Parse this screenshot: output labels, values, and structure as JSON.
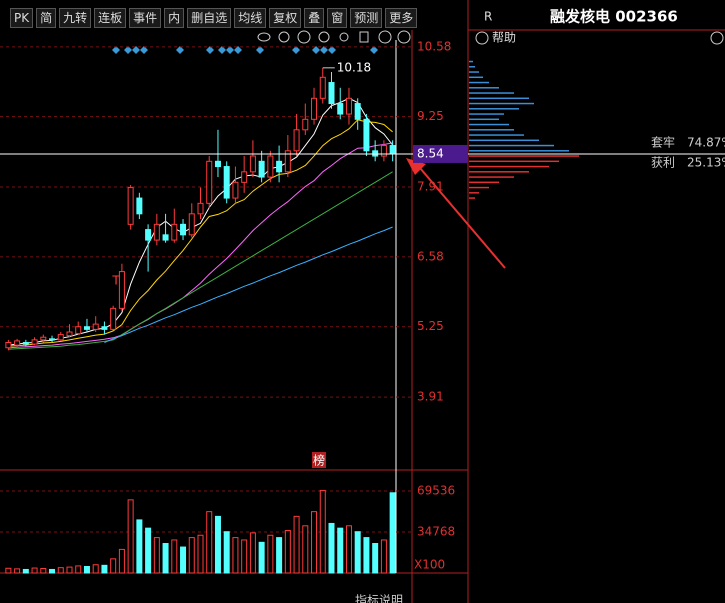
{
  "toolbar": {
    "buttons": [
      "PK",
      "简",
      "九转",
      "连板",
      "事件",
      "内",
      "删自选",
      "均线",
      "复权",
      "叠",
      "窗",
      "预测",
      "更多"
    ]
  },
  "panel": {
    "code_flag": "R",
    "title": "融发核电 002366",
    "help": "帮助",
    "trapped_label": "套牢",
    "trapped_value": "74.87%",
    "profit_label": "获利",
    "profit_value": "25.13%"
  },
  "footer": "指标说明",
  "chart_data": [
    {
      "type": "candlestick",
      "open": [
        4.85,
        4.9,
        4.95,
        4.92,
        5.0,
        5.02,
        5.0,
        5.08,
        5.12,
        5.25,
        5.2,
        5.25,
        5.2,
        5.6,
        7.2,
        7.7,
        7.1,
        6.9,
        7.0,
        6.9,
        7.2,
        7.0,
        7.4,
        7.6,
        8.4,
        8.3,
        7.7,
        8.0,
        8.2,
        8.4,
        8.1,
        8.4,
        8.2,
        8.6,
        9.0,
        9.2,
        9.6,
        9.9,
        9.5,
        9.3,
        9.5,
        9.2,
        8.6,
        8.5,
        8.7
      ],
      "close": [
        4.95,
        4.98,
        4.92,
        5.0,
        5.05,
        5.0,
        5.1,
        5.15,
        5.25,
        5.2,
        5.3,
        5.2,
        5.6,
        6.3,
        7.9,
        7.4,
        6.9,
        7.2,
        6.9,
        7.2,
        7.0,
        7.4,
        7.6,
        8.4,
        8.3,
        7.7,
        8.0,
        8.2,
        8.5,
        8.1,
        8.5,
        8.2,
        8.6,
        9.0,
        9.2,
        9.6,
        10.0,
        9.5,
        9.3,
        9.6,
        9.2,
        8.6,
        8.5,
        8.7,
        8.54
      ],
      "high": [
        5.0,
        5.02,
        5.0,
        5.05,
        5.1,
        5.08,
        5.15,
        5.3,
        5.35,
        5.4,
        5.45,
        5.35,
        5.65,
        6.45,
        7.95,
        7.8,
        7.2,
        7.4,
        7.4,
        7.5,
        7.3,
        7.6,
        7.9,
        8.5,
        9.0,
        8.4,
        8.3,
        8.5,
        8.8,
        8.6,
        8.6,
        8.7,
        8.9,
        9.3,
        9.5,
        9.8,
        10.18,
        10.1,
        9.8,
        9.8,
        9.6,
        9.3,
        8.8,
        8.8,
        8.8
      ],
      "low": [
        4.8,
        4.85,
        4.88,
        4.9,
        4.95,
        4.96,
        4.98,
        5.05,
        5.1,
        5.15,
        5.15,
        5.1,
        5.18,
        5.55,
        7.1,
        7.3,
        6.3,
        6.8,
        6.85,
        6.85,
        6.9,
        6.95,
        7.3,
        7.5,
        8.1,
        7.6,
        7.6,
        7.8,
        8.1,
        8.0,
        8.0,
        8.0,
        8.1,
        8.5,
        8.9,
        9.1,
        9.5,
        9.4,
        9.2,
        9.1,
        9.0,
        8.5,
        8.4,
        8.4,
        8.4
      ],
      "lines": [
        {
          "color": "#ffffff",
          "values": [
            4.9,
            4.92,
            4.94,
            4.95,
            4.98,
            4.99,
            5.03,
            5.06,
            5.11,
            5.15,
            5.2,
            5.22,
            5.31,
            5.52,
            6.06,
            6.48,
            6.82,
            7.14,
            7.26,
            7.12,
            7.04,
            7.14,
            7.22,
            7.52,
            7.74,
            7.88,
            8.06,
            8.12,
            8.14,
            8.1,
            8.26,
            8.3,
            8.38,
            8.48,
            8.7,
            8.92,
            9.28,
            9.46,
            9.52,
            9.6,
            9.52,
            9.24,
            9.04,
            8.92,
            8.71
          ]
        },
        {
          "color": "#ffd700",
          "values": [
            4.88,
            4.89,
            4.9,
            4.92,
            4.94,
            4.95,
            4.97,
            5.0,
            5.03,
            5.06,
            5.09,
            5.11,
            5.17,
            5.29,
            5.56,
            5.78,
            5.94,
            6.14,
            6.31,
            6.51,
            6.7,
            6.92,
            7.15,
            7.35,
            7.39,
            7.46,
            7.6,
            7.67,
            7.83,
            7.95,
            8.07,
            8.15,
            8.17,
            8.23,
            8.32,
            8.5,
            8.7,
            8.83,
            8.91,
            9.02,
            9.19,
            9.15,
            9.14,
            9.1,
            8.96
          ]
        },
        {
          "color": "#ff66ff",
          "values": [
            4.85,
            4.86,
            4.87,
            4.88,
            4.89,
            4.9,
            4.92,
            4.93,
            4.95,
            4.97,
            4.99,
            5.01,
            5.04,
            5.09,
            5.2,
            5.3,
            5.39,
            5.5,
            5.59,
            5.69,
            5.8,
            5.94,
            6.08,
            6.25,
            6.4,
            6.55,
            6.72,
            6.9,
            7.08,
            7.23,
            7.38,
            7.51,
            7.63,
            7.78,
            7.92,
            8.03,
            8.2,
            8.32,
            8.45,
            8.55,
            8.65,
            8.66,
            8.7,
            8.72,
            8.75
          ]
        },
        {
          "color": "#3cb043",
          "values": [
            4.82,
            4.83,
            4.84,
            4.85,
            4.86,
            4.87,
            4.88,
            4.9,
            4.91,
            4.93,
            4.95,
            4.97,
            5.0,
            5.1,
            5.2,
            5.3,
            5.4,
            5.5,
            5.6,
            5.7,
            5.8,
            5.9,
            6.0,
            6.1,
            6.2,
            6.3,
            6.4,
            6.5,
            6.6,
            6.7,
            6.8,
            6.9,
            7.0,
            7.1,
            7.2,
            7.3,
            7.4,
            7.5,
            7.6,
            7.7,
            7.8,
            7.9,
            8.0,
            8.1,
            8.2
          ]
        },
        {
          "color": "#3ab0ff",
          "values": [
            null,
            null,
            null,
            null,
            null,
            null,
            null,
            null,
            null,
            null,
            null,
            4.95,
            5.02,
            5.08,
            5.15,
            5.22,
            5.28,
            5.35,
            5.42,
            5.48,
            5.55,
            5.62,
            5.68,
            5.75,
            5.82,
            5.88,
            5.95,
            6.02,
            6.08,
            6.15,
            6.22,
            6.28,
            6.35,
            6.42,
            6.48,
            6.55,
            6.62,
            6.68,
            6.75,
            6.82,
            6.88,
            6.95,
            7.02,
            7.08,
            7.15
          ]
        }
      ],
      "ylim": [
        2.56,
        10.71
      ],
      "yticks": [
        10.58,
        9.25,
        7.91,
        6.58,
        5.25,
        3.91
      ],
      "last_price": 8.54,
      "max_price": 10.18,
      "signal": "T",
      "badge": "榜",
      "up_color": "#ff3b3b",
      "down_color": "#54ffff",
      "tick_color": "#e03030"
    },
    {
      "type": "bar",
      "values": [
        4000,
        3500,
        3000,
        4200,
        3800,
        3000,
        4500,
        5000,
        6000,
        5500,
        7000,
        6500,
        12000,
        20000,
        62000,
        45000,
        38000,
        30000,
        25000,
        28000,
        22000,
        30000,
        32000,
        52000,
        48000,
        35000,
        30000,
        28000,
        34000,
        26000,
        32000,
        30000,
        36000,
        48000,
        40000,
        52000,
        70000,
        42000,
        38000,
        40000,
        35000,
        30000,
        25000,
        28000,
        68000
      ],
      "ylim": [
        0,
        87300
      ],
      "yticks": [
        69536,
        34768
      ],
      "unit_label": "X100"
    },
    {
      "type": "barh",
      "y": [
        10.3,
        10.2,
        10.1,
        10.0,
        9.9,
        9.8,
        9.7,
        9.6,
        9.5,
        9.4,
        9.3,
        9.2,
        9.1,
        9.0,
        8.9,
        8.8,
        8.7,
        8.6,
        8.5,
        8.4,
        8.3,
        8.2,
        8.1,
        8.0,
        7.9,
        7.8,
        7.7
      ],
      "values": [
        4,
        6,
        10,
        14,
        20,
        30,
        45,
        60,
        65,
        50,
        35,
        30,
        40,
        45,
        55,
        70,
        85,
        100,
        110,
        90,
        80,
        60,
        45,
        30,
        20,
        10,
        6
      ],
      "above_color": "#3a8fd8",
      "below_color": "#e03030"
    }
  ]
}
